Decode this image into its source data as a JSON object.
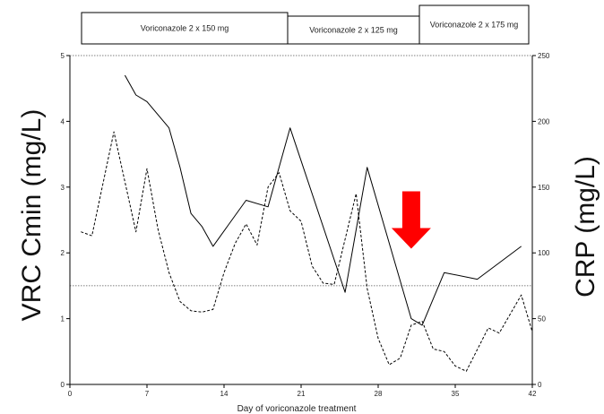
{
  "chart_data": {
    "type": "line",
    "title": "",
    "xlabel": "Day of voriconazole treatment",
    "ylabel_left": "VRC Cmin (mg/L)",
    "ylabel_right": "CRP (mg/L)",
    "xlim": [
      0,
      42
    ],
    "xticks": [
      0,
      7,
      14,
      21,
      28,
      35,
      42
    ],
    "ylim_left": [
      0,
      5
    ],
    "yticks_left": [
      0,
      1,
      2,
      3,
      4,
      5
    ],
    "ylim_right": [
      0,
      250
    ],
    "yticks_right": [
      0,
      50,
      100,
      150,
      200,
      250
    ],
    "grid": false,
    "reference_lines_left": [
      1.5,
      5
    ],
    "dose_periods": [
      {
        "label": "Voriconazole 2 x 150 mg"
      },
      {
        "label": "Voriconazole 2 x 125 mg"
      },
      {
        "label": "Voriconazole 2 x 175 mg"
      }
    ],
    "series": [
      {
        "axis": "left",
        "style": "solid",
        "x": [
          5,
          6,
          7,
          9,
          10,
          11,
          12,
          13,
          16,
          18,
          20,
          25,
          27,
          31,
          32,
          34,
          37,
          41
        ],
        "y": [
          4.7,
          4.4,
          4.3,
          3.9,
          3.3,
          2.6,
          2.4,
          2.1,
          2.8,
          2.7,
          3.9,
          1.4,
          3.3,
          1.0,
          0.9,
          1.7,
          1.6,
          2.1
        ]
      },
      {
        "axis": "right",
        "style": "dashed",
        "x": [
          1,
          2,
          4,
          6,
          7,
          8,
          9,
          10,
          11,
          12,
          13,
          14,
          15,
          16,
          17,
          18,
          19,
          20,
          21,
          22,
          23,
          24,
          26,
          27,
          28,
          29,
          30,
          31,
          32,
          33,
          34,
          35,
          36,
          38,
          39,
          41,
          42
        ],
        "y": [
          116,
          113,
          192,
          116,
          164,
          118,
          85,
          63,
          56,
          55,
          57,
          85,
          107,
          122,
          106,
          150,
          161,
          132,
          124,
          90,
          77,
          76,
          145,
          73,
          35,
          15,
          20,
          45,
          48,
          27,
          25,
          14,
          10,
          43,
          39,
          68,
          40
        ]
      }
    ],
    "annotation": {
      "type": "arrow",
      "x": 31,
      "y": 2.5,
      "color": "#ff0000"
    }
  }
}
